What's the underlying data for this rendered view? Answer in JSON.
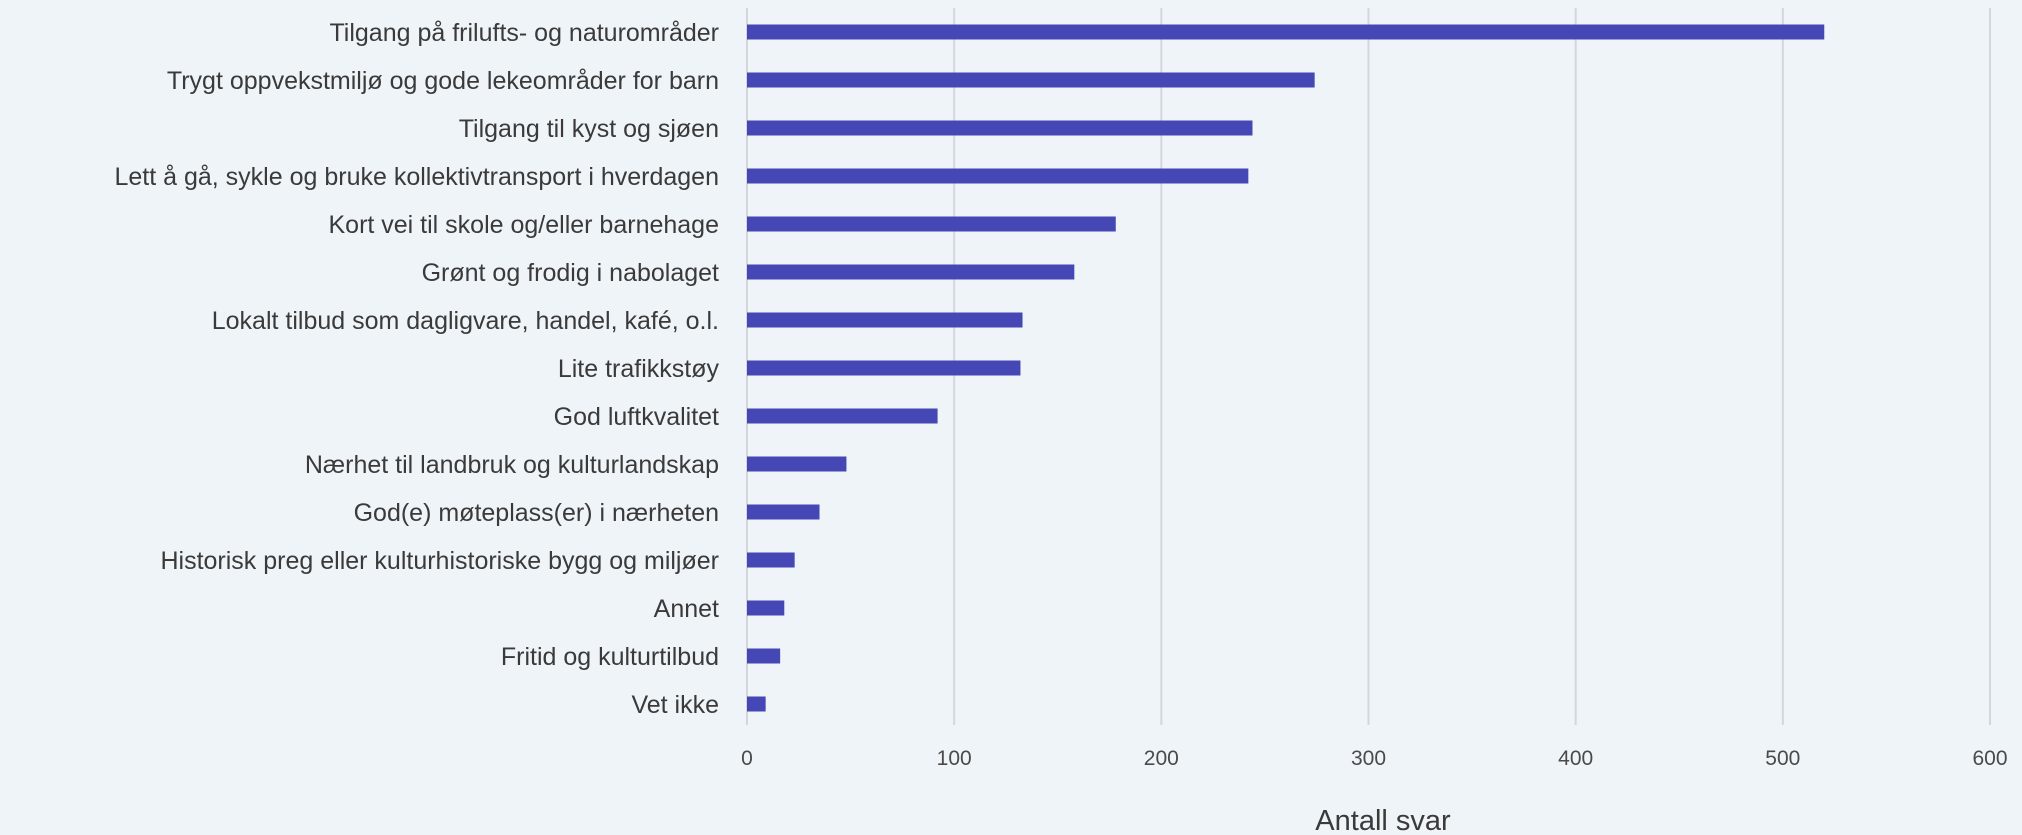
{
  "chart_data": {
    "type": "bar",
    "orientation": "horizontal",
    "categories": [
      "Tilgang på frilufts- og naturområder",
      "Trygt oppvekstmiljø og gode lekeområder for barn",
      "Tilgang til kyst og sjøen",
      "Lett å gå, sykle og bruke kollektivtransport i hverdagen",
      "Kort vei til skole og/eller barnehage",
      "Grønt og frodig i nabolaget",
      "Lokalt tilbud som dagligvare, handel, kafé, o.l.",
      "Lite trafikkstøy",
      "God luftkvalitet",
      "Nærhet til landbruk og kulturlandskap",
      "God(e) møteplass(er) i nærheten",
      "Historisk preg eller kulturhistoriske bygg og miljøer",
      "Annet",
      "Fritid og kulturtilbud",
      "Vet ikke"
    ],
    "values": [
      520,
      274,
      244,
      242,
      178,
      158,
      133,
      132,
      92,
      48,
      35,
      23,
      18,
      16,
      9
    ],
    "title": "",
    "xlabel": "Antall svar",
    "ylabel": "",
    "xlim": [
      0,
      600
    ],
    "xticks": [
      0,
      100,
      200,
      300,
      400,
      500,
      600
    ],
    "grid": "vertical",
    "legend": "none",
    "bar_color": "#4547b4",
    "background_color": "#eff4f9"
  }
}
